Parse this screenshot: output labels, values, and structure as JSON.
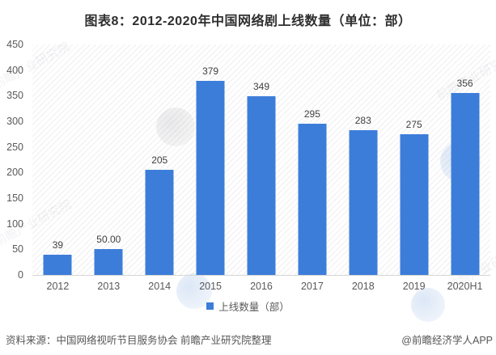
{
  "title": "图表8：2012-2020年中国网络剧上线数量（单位：部）",
  "chart_data": {
    "type": "bar",
    "title": "图表8：2012-2020年中国网络剧上线数量（单位：部）",
    "categories": [
      "2012",
      "2013",
      "2014",
      "2015",
      "2016",
      "2017",
      "2018",
      "2019",
      "2020H1"
    ],
    "values": [
      39,
      50,
      205,
      379,
      349,
      295,
      283,
      275,
      356
    ],
    "value_labels": [
      "39",
      "50.00",
      "205",
      "379",
      "349",
      "295",
      "283",
      "275",
      "356"
    ],
    "xlabel": "",
    "ylabel": "",
    "ylim": [
      0,
      450
    ],
    "yticks": [
      0,
      50,
      100,
      150,
      200,
      250,
      300,
      350,
      400,
      450
    ],
    "grid": false,
    "bar_color": "#3D7DDA",
    "legend": {
      "position": "bottom",
      "items": [
        {
          "label": "上线数量（部）",
          "color": "#3D7DDA"
        }
      ]
    }
  },
  "footer": {
    "source": "资料来源：中国网络视听节目服务协会 前瞻产业研究院整理",
    "credit": "@前瞻经济学人APP"
  },
  "watermark": {
    "text": "前瞻产业研究院"
  },
  "colors": {
    "bar": "#3D7DDA",
    "title_text": "#2E2E2E",
    "axis_text": "#595959",
    "value_text": "#3F3F3F",
    "baseline": "#D6D6D6",
    "background": "#FFFFFF"
  }
}
